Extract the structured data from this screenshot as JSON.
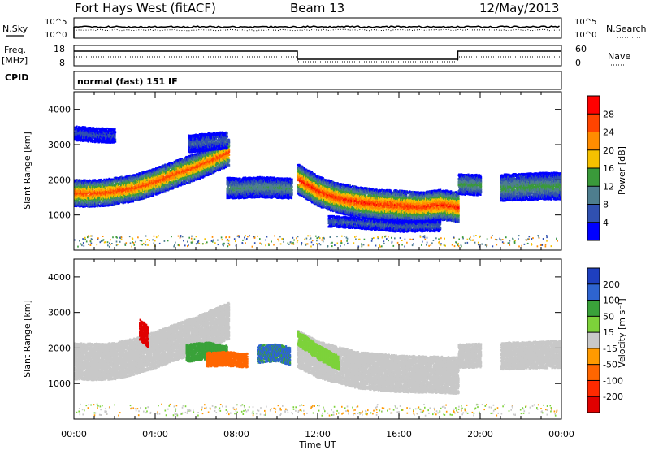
{
  "header": {
    "station": "Fort Hays West (fitACF)",
    "beam": "Beam 13",
    "date": "12/May/2013"
  },
  "param_panels": {
    "nsky_label": "N.Sky",
    "nsky_ticks": [
      "10^5",
      "10^0"
    ],
    "nsearch_label": "N.Search",
    "nsearch_ticks": [
      "10^5",
      "10^0"
    ],
    "freq_label": "Freq.",
    "freq_unit": "[MHz]",
    "freq_ticks": [
      "18",
      "8"
    ],
    "nave_label": "Nave",
    "nave_ticks": [
      "60",
      "0"
    ],
    "cpid_label": "CPID",
    "cpid_value": "normal (fast) 151 IF"
  },
  "axes": {
    "ylabel": "Slant Range [km]",
    "xlabel": "Time UT",
    "yticks": [
      1000,
      2000,
      3000,
      4000
    ],
    "ylim": [
      0,
      4500
    ],
    "xticks": [
      "00:00",
      "04:00",
      "08:00",
      "12:00",
      "16:00",
      "20:00",
      "00:00"
    ],
    "xlim_hours": [
      0,
      24
    ]
  },
  "colorbars": {
    "power": {
      "label": "Power [dB]",
      "ticks": [
        "28",
        "24",
        "20",
        "16",
        "12",
        "8",
        "4"
      ],
      "colors": [
        "#ff0000",
        "#ff4400",
        "#ff8c00",
        "#f5c000",
        "#3a9a3a",
        "#4e7e8e",
        "#3050b0",
        "#0000ff"
      ]
    },
    "velocity": {
      "label": "Velocity [m s⁻¹]",
      "ticks": [
        "200",
        "100",
        "50",
        "15",
        "-15",
        "-50",
        "-100",
        "-200"
      ],
      "colors": [
        "#1e3fbf",
        "#2e64d0",
        "#3aa23a",
        "#7dd23a",
        "#c8c8c8",
        "#ff9a00",
        "#ff6600",
        "#ff2a00",
        "#e00000"
      ]
    }
  },
  "chart_data": [
    {
      "type": "heatmap",
      "title": "",
      "xlabel": "",
      "ylabel": "Slant Range [km]",
      "ylim": [
        0,
        4500
      ],
      "quantity": "Power [dB]",
      "bands": [
        {
          "t": [
            0,
            0.6,
            1.5,
            3.0,
            4.0,
            5.0,
            6.0,
            7.0,
            7.6
          ],
          "r": [
            1650,
            1640,
            1660,
            1800,
            1980,
            2200,
            2400,
            2650,
            2800
          ],
          "width_km": 380,
          "peak_db": 26
        },
        {
          "t": [
            7.5,
            8.0,
            9.0,
            10.0,
            10.7
          ],
          "r": [
            1800,
            1790,
            1820,
            1800,
            1780
          ],
          "width_km": 260,
          "peak_db": 12
        },
        {
          "t": [
            11.0,
            12.0,
            13.0,
            14.0,
            15.0,
            16.0,
            17.0,
            18.0,
            18.9
          ],
          "r": [
            2050,
            1700,
            1500,
            1400,
            1320,
            1300,
            1250,
            1320,
            1250
          ],
          "width_km": 420,
          "peak_db": 28
        },
        {
          "t": [
            12.5,
            14.0,
            16.0,
            18.0
          ],
          "r": [
            850,
            800,
            700,
            720
          ],
          "width_km": 150,
          "peak_db": 8
        },
        {
          "t": [
            18.9,
            20.0
          ],
          "r": [
            1900,
            1880
          ],
          "width_km": 280,
          "peak_db": 14
        },
        {
          "t": [
            21.0,
            22.0,
            23.0,
            24.0
          ],
          "r": [
            1800,
            1820,
            1850,
            1850
          ],
          "width_km": 350,
          "peak_db": 14
        },
        {
          "t": [
            0.0,
            1.0,
            2.0
          ],
          "r": [
            3350,
            3300,
            3280
          ],
          "width_km": 160,
          "peak_db": 6
        },
        {
          "t": [
            5.6,
            6.5,
            7.5
          ],
          "r": [
            3050,
            3100,
            3150
          ],
          "width_km": 220,
          "peak_db": 8
        }
      ]
    },
    {
      "type": "heatmap",
      "title": "",
      "xlabel": "Time UT",
      "ylabel": "Slant Range [km]",
      "ylim": [
        0,
        4500
      ],
      "quantity": "Velocity [m s⁻¹]",
      "bands": [
        {
          "t": [
            0,
            1.0,
            2.0,
            3.0,
            4.0,
            5.0,
            6.0,
            7.0,
            7.6
          ],
          "r": [
            1650,
            1640,
            1660,
            1800,
            1980,
            2200,
            2400,
            2650,
            2800
          ],
          "width_km": 500,
          "velocity": 0
        },
        {
          "t": [
            3.2,
            3.6
          ],
          "r": [
            2550,
            2350
          ],
          "width_km": 280,
          "velocity": -220
        },
        {
          "t": [
            5.5,
            6.5,
            7.5
          ],
          "r": [
            1880,
            1950,
            1850
          ],
          "width_km": 220,
          "velocity": 60
        },
        {
          "t": [
            6.5,
            7.5,
            8.5
          ],
          "r": [
            1700,
            1720,
            1680
          ],
          "width_km": 200,
          "velocity": -60
        },
        {
          "t": [
            9.0,
            10.0,
            10.6
          ],
          "r": [
            1850,
            1900,
            1800
          ],
          "width_km": 220,
          "velocity": 80
        },
        {
          "t": [
            11.0,
            12.0,
            14.0,
            16.0,
            18.0,
            18.9
          ],
          "r": [
            2000,
            1700,
            1400,
            1300,
            1280,
            1250
          ],
          "width_km": 500,
          "velocity": 0
        },
        {
          "t": [
            11.0,
            12.0,
            13.0
          ],
          "r": [
            2300,
            1900,
            1600
          ],
          "width_km": 180,
          "velocity": 30
        },
        {
          "t": [
            18.9,
            20.0
          ],
          "r": [
            1800,
            1820
          ],
          "width_km": 300,
          "velocity": 0
        },
        {
          "t": [
            21.0,
            24.0
          ],
          "r": [
            1800,
            1850
          ],
          "width_km": 350,
          "velocity": 0
        }
      ]
    }
  ]
}
